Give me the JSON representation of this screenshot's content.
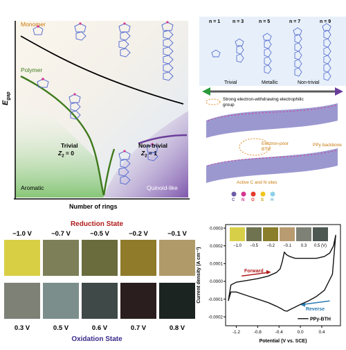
{
  "panel_a": {
    "ylabel": "E",
    "ylabel_sub": "gap",
    "xlabel": "Number of rings",
    "monomer_label": "Monomer",
    "polymer_label": "Polymer",
    "trivial_label": "Trivial",
    "trivial_z_label": "Z",
    "trivial_z_sub": "2",
    "trivial_z_value": " = 0",
    "nontrivial_label": "Non-trivial",
    "nontrivial_z_label": "Z",
    "nontrivial_z_sub": "2",
    "nontrivial_z_value": " = 1",
    "aromatic_label": "Aromatic",
    "quinoid_label": "Quinoid-like",
    "colors": {
      "green": "#3f7a1c",
      "purple": "#6a3d9a",
      "monomer_text": "#c8780a"
    }
  },
  "panel_b": {
    "n_labels": [
      "n = 1",
      "n = 3",
      "n = 5",
      "n = 7",
      "n = 9"
    ],
    "regimes": [
      "Trivial",
      "Metallic",
      "Non-trivial"
    ],
    "annotation_group": "Strong electron-withdrawing electrophilic group",
    "annotation_bth": "Electron-poor BTH",
    "annotation_backbone": "PPy backbone",
    "annotation_sites": "Active C and N sites",
    "legend": [
      "C",
      "N",
      "O",
      "S",
      "H"
    ],
    "legend_colors": [
      "#6d5ca8",
      "#d6348f",
      "#e6392a",
      "#f0c419",
      "#8fd0e8"
    ]
  },
  "panel_c": {
    "reduction_title": "Reduction State",
    "oxidation_title": "Oxidation State",
    "reduction_voltages": [
      "−1.0 V",
      "−0.7 V",
      "−0.5 V",
      "−0.2 V",
      "−0.1 V"
    ],
    "oxidation_voltages": [
      "0.3 V",
      "0.5 V",
      "0.6 V",
      "0.7 V",
      "0.8 V"
    ],
    "reduction_colors": [
      "#d9cf45",
      "#7c7f58",
      "#6a6c3e",
      "#8f7b2a",
      "#b09a6a"
    ],
    "oxidation_colors": [
      "#7d8176",
      "#7b8e8b",
      "#3f4a48",
      "#2a1e1e",
      "#1c2422"
    ],
    "title_colors": {
      "reduction": "#b01a1a",
      "oxidation": "#3a2a8a"
    }
  },
  "panel_d": {
    "inset_labels": [
      "−1.0",
      "−0.5",
      "−0.2",
      "−0.1",
      "0.3",
      "0.5 (V)"
    ],
    "inset_colors": [
      "#d8cf48",
      "#6f7350",
      "#8a7d2c",
      "#b89b70",
      "#7d8176",
      "#4e5852"
    ],
    "forward_label": "Forward",
    "reverse_label": "Reverse",
    "legend_label": "PPy-BTH",
    "colors": {
      "forward": "#b01a1a",
      "reverse": "#2a7ab0"
    }
  },
  "chart_data": {
    "type": "line",
    "xlabel": "Potential (V vs. SCE)",
    "ylabel": "Current density (A cm⁻²)",
    "xlim": [
      -1.4,
      0.75
    ],
    "ylim": [
      -0.00025,
      0.00032
    ],
    "xticks": [
      -1.2,
      -0.8,
      -0.4,
      0.0,
      0.4
    ],
    "xtick_labels": [
      "-1.2",
      "-0.8",
      "-0.4",
      "0.0",
      "0.4"
    ],
    "yticks": [
      -0.0002,
      -0.0001,
      0.0,
      0.0001,
      0.0002,
      0.0003
    ],
    "ytick_labels": [
      "-0.0002",
      "-0.0001",
      "0.0000",
      "0.0001",
      "0.0002",
      "0.0003"
    ],
    "series": [
      {
        "name": "PPy-BTH",
        "x": [
          -1.35,
          -1.3,
          -1.2,
          -1.0,
          -0.8,
          -0.6,
          -0.45,
          -0.38,
          -0.34,
          -0.3,
          -0.26,
          -0.2,
          -0.1,
          0.0,
          0.15,
          0.3,
          0.45,
          0.55,
          0.62,
          0.66,
          0.6,
          0.45,
          0.3,
          0.15,
          0.0,
          -0.1,
          -0.2,
          -0.25,
          -0.3,
          -0.35,
          -0.45,
          -0.6,
          -0.8,
          -1.0,
          -1.2,
          -1.3,
          -1.35
        ],
        "y": [
          -0.00011,
          -2e-05,
          -5e-06,
          5e-06,
          1.5e-05,
          3e-05,
          5e-05,
          7e-05,
          0.00011,
          0.000165,
          0.00015,
          0.00014,
          0.00013,
          0.00013,
          0.00013,
          0.00013,
          0.00014,
          0.00016,
          0.0002,
          0.00026,
          4e-05,
          -5e-05,
          -8.5e-05,
          -0.00011,
          -0.00013,
          -0.000145,
          -0.00016,
          -0.000168,
          -0.000165,
          -0.000155,
          -0.00014,
          -0.00012,
          -0.0001,
          -8e-05,
          -6e-05,
          -6e-05,
          -0.00011
        ]
      }
    ]
  }
}
